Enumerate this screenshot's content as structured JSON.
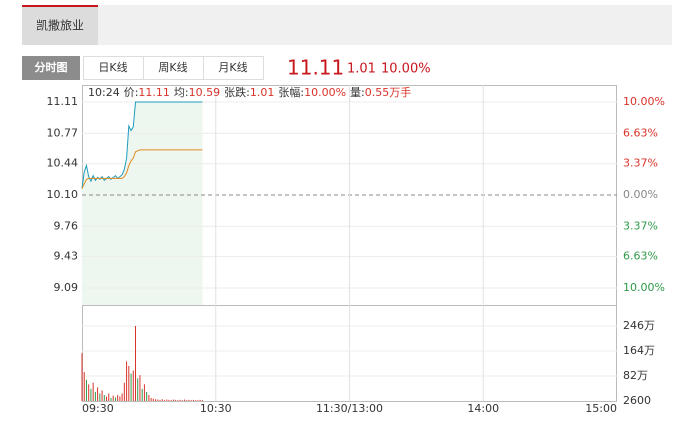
{
  "header": {
    "stock_name": "凯撒旅业"
  },
  "chart_tabs": [
    "分时图",
    "日K线",
    "周K线",
    "月K线"
  ],
  "quote": {
    "price": "11.11",
    "change": "1.01",
    "change_pct": "10.00%"
  },
  "chart_data": [
    {
      "type": "line",
      "time": "10:24",
      "info": [
        {
          "label": "价:",
          "value": "11.11"
        },
        {
          "label": "均:",
          "value": "10.59"
        },
        {
          "label": "张跌:",
          "value": "1.01"
        },
        {
          "label": "张幅:",
          "value": "10.00%"
        },
        {
          "label": "量:",
          "value": "0.55万手"
        }
      ],
      "x": [
        0,
        1,
        2,
        3,
        4,
        5,
        6,
        7,
        8,
        9,
        10,
        11,
        12,
        13,
        14,
        15,
        16,
        17,
        18,
        19,
        20,
        21,
        22,
        23,
        24,
        25,
        26,
        27,
        28,
        29,
        30,
        31,
        32,
        33,
        34,
        35,
        36,
        37,
        38,
        39,
        40,
        41,
        42,
        43,
        44,
        45,
        46,
        47,
        48,
        49,
        50,
        51,
        52,
        53,
        54
      ],
      "series": [
        {
          "color": "#1e9bc0",
          "values": [
            10.17,
            10.35,
            10.42,
            10.3,
            10.25,
            10.31,
            10.26,
            10.29,
            10.27,
            10.3,
            10.26,
            10.28,
            10.3,
            10.27,
            10.29,
            10.31,
            10.28,
            10.3,
            10.32,
            10.38,
            10.5,
            10.85,
            10.8,
            10.84,
            11.11,
            11.11,
            11.11,
            11.11,
            11.11,
            11.11,
            11.11,
            11.11,
            11.11,
            11.11,
            11.11,
            11.11,
            11.11,
            11.11,
            11.11,
            11.11,
            11.11,
            11.11,
            11.11,
            11.11,
            11.11,
            11.11,
            11.11,
            11.11,
            11.11,
            11.11,
            11.11,
            11.11,
            11.11,
            11.11,
            11.11
          ]
        },
        {
          "color": "#e08a1e",
          "values": [
            10.17,
            10.22,
            10.27,
            10.28,
            10.28,
            10.28,
            10.28,
            10.28,
            10.28,
            10.28,
            10.28,
            10.28,
            10.28,
            10.28,
            10.28,
            10.28,
            10.28,
            10.28,
            10.28,
            10.3,
            10.34,
            10.42,
            10.47,
            10.5,
            10.57,
            10.58,
            10.59,
            10.59,
            10.59,
            10.59,
            10.59,
            10.59,
            10.59,
            10.59,
            10.59,
            10.59,
            10.59,
            10.59,
            10.59,
            10.59,
            10.59,
            10.59,
            10.59,
            10.59,
            10.59,
            10.59,
            10.59,
            10.59,
            10.59,
            10.59,
            10.59,
            10.59,
            10.59,
            10.59,
            10.59
          ]
        }
      ],
      "area_color": "#eef7ef",
      "xlim": [
        0,
        240
      ],
      "xticks": [
        {
          "value": 0,
          "label": "09:30"
        },
        {
          "value": 60,
          "label": "10:30"
        },
        {
          "value": 120,
          "label": "11:30/13:00"
        },
        {
          "value": 180,
          "label": "14:00"
        },
        {
          "value": 240,
          "label": "15:00"
        }
      ],
      "ylim": [
        8.905,
        11.295
      ],
      "yticks": [
        11.11,
        10.77,
        10.44,
        {
          "value": 10.1,
          "label": "10.10"
        },
        9.76,
        9.43,
        9.09
      ],
      "y2lim": [
        -11.83,
        11.83
      ],
      "y2ticks": [
        {
          "value": 10,
          "label": "10.00%"
        },
        {
          "value": 6.63,
          "label": "6.63%"
        },
        {
          "value": 3.37,
          "label": "3.37%"
        },
        {
          "value": 0,
          "label": "0.00%"
        },
        {
          "value": -3.37,
          "label": "3.37%"
        },
        {
          "value": -6.63,
          "label": "6.63%"
        },
        {
          "value": -10,
          "label": "10.00%"
        }
      ]
    },
    {
      "type": "bar",
      "values": [
        157,
        95,
        70,
        55,
        40,
        60,
        30,
        45,
        25,
        35,
        20,
        15,
        25,
        10,
        18,
        12,
        20,
        15,
        25,
        60,
        130,
        115,
        90,
        100,
        246,
        75,
        85,
        40,
        55,
        30,
        20,
        10,
        8,
        6,
        5,
        4,
        6,
        3,
        5,
        4,
        3,
        5,
        4,
        3,
        4,
        3,
        5,
        3,
        4,
        3,
        4,
        3,
        3,
        4,
        3
      ],
      "colors": [
        "#d9332b",
        "#d9332b",
        "#2f9a4a",
        "#d9332b",
        "#2f9a4a",
        "#d9332b",
        "#2f9a4a",
        "#d9332b",
        "#2f9a4a",
        "#d9332b",
        "#2f9a4a",
        "#d9332b",
        "#d9332b",
        "#2f9a4a",
        "#d9332b",
        "#2f9a4a",
        "#d9332b",
        "#d9332b",
        "#d9332b",
        "#d9332b",
        "#d9332b",
        "#d9332b",
        "#2f9a4a",
        "#d9332b",
        "#d9332b",
        "#2f9a4a",
        "#d9332b",
        "#2f9a4a",
        "#d9332b",
        "#2f9a4a",
        "#d9332b",
        "#d9332b",
        "#d9332b",
        "#d9332b",
        "#d9332b",
        "#d9332b",
        "#d9332b",
        "#d9332b",
        "#d9332b",
        "#d9332b",
        "#d9332b",
        "#d9332b",
        "#d9332b",
        "#d9332b",
        "#d9332b",
        "#d9332b",
        "#d9332b",
        "#d9332b",
        "#d9332b",
        "#d9332b",
        "#d9332b",
        "#d9332b",
        "#d9332b",
        "#d9332b",
        "#d9332b"
      ],
      "ylim": [
        0.26,
        246
      ],
      "yticks": [
        {
          "value": 246,
          "label": "246万"
        },
        {
          "value": 164,
          "label": "164万"
        },
        {
          "value": 82,
          "label": "82万"
        },
        {
          "value": 0.26,
          "label": "2600"
        }
      ]
    }
  ]
}
